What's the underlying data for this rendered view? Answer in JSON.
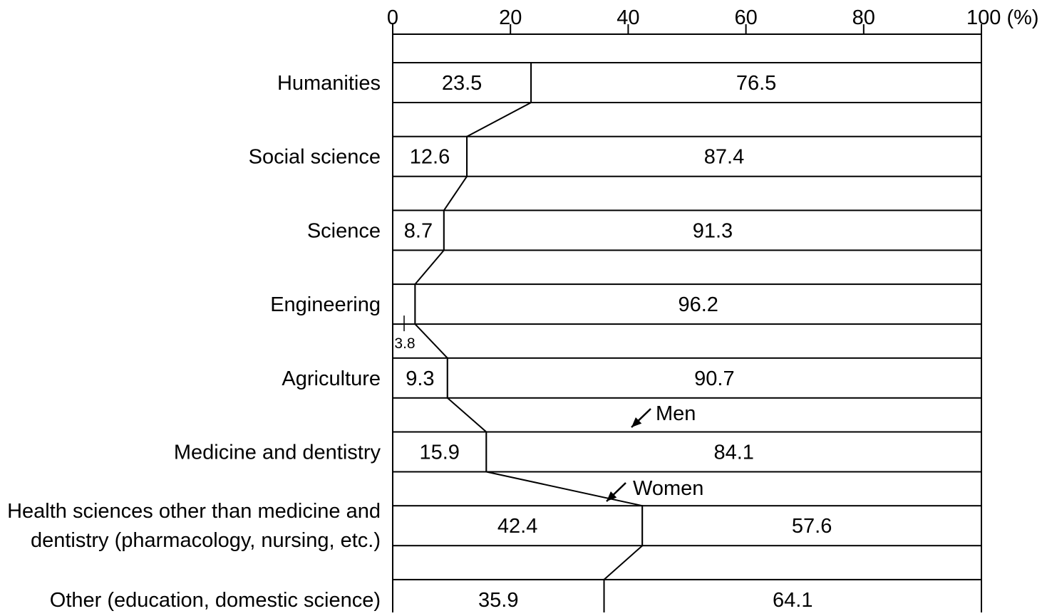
{
  "chart_data": {
    "type": "bar",
    "stacked": true,
    "orientation": "horizontal",
    "percent_unit": "(%)",
    "xlim": [
      0,
      100
    ],
    "x_ticks": [
      0,
      20,
      40,
      60,
      80,
      100
    ],
    "categories": [
      [
        "Humanities"
      ],
      [
        "Social science"
      ],
      [
        "Science"
      ],
      [
        "Engineering"
      ],
      [
        "Agriculture"
      ],
      [
        "Medicine and dentistry"
      ],
      [
        "Health sciences other than medicine and",
        "dentistry (pharmacology, nursing, etc.)"
      ],
      [
        "Other (education, domestic science)"
      ]
    ],
    "series": [
      {
        "name": "Women",
        "values": [
          23.5,
          12.6,
          8.7,
          3.8,
          9.3,
          15.9,
          42.4,
          35.9
        ]
      },
      {
        "name": "Men",
        "values": [
          76.5,
          87.4,
          91.3,
          96.2,
          90.7,
          84.1,
          57.6,
          64.1
        ]
      }
    ],
    "annotations": {
      "men": "Men",
      "women": "Women"
    },
    "grid": false,
    "legend": "none"
  }
}
